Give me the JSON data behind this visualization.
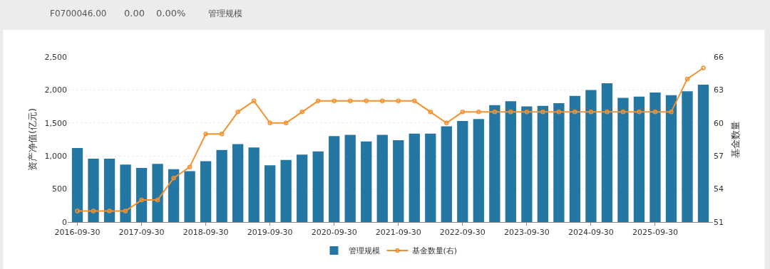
{
  "chart_data": {
    "type": "bar",
    "annotations": [
      "F0700046.00",
      "0.00",
      "0.00%",
      "管理规模"
    ],
    "ylabel": "资产净值(亿元)",
    "y2label": "基金数量",
    "categories": [
      "2016-09-30",
      null,
      null,
      null,
      "2017-09-30",
      null,
      null,
      null,
      "2018-09-30",
      null,
      null,
      null,
      "2019-09-30",
      null,
      null,
      null,
      "2020-09-30",
      null,
      null,
      null,
      "2021-09-30",
      null,
      null,
      null,
      "2022-09-30",
      null,
      null,
      null,
      "2023-09-30",
      null,
      null,
      null,
      "2024-09-30",
      null,
      null,
      null,
      "2025-09-30",
      null,
      null,
      null
    ],
    "series": [
      {
        "name": "管理规模",
        "color": "#2477a3",
        "values": [
          1120,
          960,
          960,
          870,
          820,
          880,
          800,
          770,
          920,
          1090,
          1180,
          1130,
          860,
          940,
          1020,
          1070,
          1300,
          1320,
          1220,
          1320,
          1240,
          1340,
          1340,
          1450,
          1530,
          1560,
          1770,
          1830,
          1750,
          1760,
          1800,
          1910,
          2000,
          2100,
          1880,
          1900,
          1960,
          1920,
          1980,
          2080
        ]
      },
      {
        "name": "基金数量(右)",
        "type": "line",
        "axis": "y2",
        "color": "#f5922f",
        "marker": "circle",
        "values": [
          52,
          52,
          52,
          52,
          53,
          53,
          55,
          56,
          59,
          59,
          61,
          62,
          60,
          60,
          61,
          62,
          62,
          62,
          62,
          62,
          62,
          62,
          61,
          60,
          61,
          61,
          61,
          61,
          61,
          61,
          61,
          61,
          61,
          61,
          61,
          61,
          61,
          61,
          64,
          65
        ]
      }
    ],
    "ylim": [
      0,
      2500
    ],
    "yticks": [
      0,
      {
        "value": 500,
        "label": "500"
      },
      {
        "value": 1000,
        "label": "1,000"
      },
      {
        "value": 1500,
        "label": "1,500"
      },
      {
        "value": 2000,
        "label": "2,000"
      },
      {
        "value": 2500,
        "label": "2,500"
      }
    ],
    "y2lim": [
      51,
      66
    ],
    "y2ticks": [
      51,
      54,
      57,
      60,
      63,
      66
    ],
    "grid": "y",
    "legend": "bottom"
  }
}
